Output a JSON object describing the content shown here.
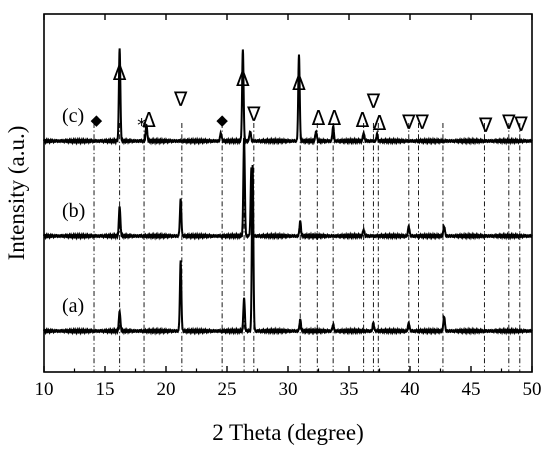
{
  "chart_data": {
    "type": "line",
    "xlabel": "2 Theta (degree)",
    "ylabel": "Intensity (a.u.)",
    "xlim": [
      10,
      50
    ],
    "x_ticks": [
      10,
      15,
      20,
      25,
      30,
      35,
      40,
      45,
      50
    ],
    "grid": false,
    "y_tick_labels": "none",
    "series": [
      {
        "name": "(a)",
        "peaks": [
          {
            "x": 16.2,
            "h": 0.12
          },
          {
            "x": 21.2,
            "h": 0.42
          },
          {
            "x": 26.4,
            "h": 0.2
          },
          {
            "x": 27.1,
            "h": 1.0
          },
          {
            "x": 31.0,
            "h": 0.07
          },
          {
            "x": 33.7,
            "h": 0.04
          },
          {
            "x": 37.0,
            "h": 0.05
          },
          {
            "x": 39.9,
            "h": 0.05
          },
          {
            "x": 42.8,
            "h": 0.09
          }
        ]
      },
      {
        "name": "(b)",
        "peaks": [
          {
            "x": 16.2,
            "h": 0.18
          },
          {
            "x": 21.2,
            "h": 0.22
          },
          {
            "x": 26.4,
            "h": 0.59
          },
          {
            "x": 27.0,
            "h": 0.41
          },
          {
            "x": 31.0,
            "h": 0.09
          },
          {
            "x": 36.2,
            "h": 0.04
          },
          {
            "x": 39.9,
            "h": 0.06
          },
          {
            "x": 42.8,
            "h": 0.06
          }
        ]
      },
      {
        "name": "(c)",
        "peaks": [
          {
            "x": 16.2,
            "h": 0.56
          },
          {
            "x": 18.4,
            "h": 0.1
          },
          {
            "x": 24.5,
            "h": 0.05
          },
          {
            "x": 26.3,
            "h": 0.55
          },
          {
            "x": 26.9,
            "h": 0.06
          },
          {
            "x": 30.9,
            "h": 0.52
          },
          {
            "x": 32.3,
            "h": 0.06
          },
          {
            "x": 33.7,
            "h": 0.09
          },
          {
            "x": 36.2,
            "h": 0.05
          },
          {
            "x": 37.3,
            "h": 0.04
          }
        ]
      }
    ],
    "reference_lines_x": [
      14.1,
      16.2,
      18.2,
      21.3,
      24.6,
      26.4,
      27.2,
      31.0,
      32.4,
      33.7,
      36.2,
      37.0,
      37.4,
      39.9,
      40.7,
      42.7,
      46.1,
      48.1,
      49.0
    ],
    "phase_markers": [
      {
        "symbol": "◆",
        "x": 14.3
      },
      {
        "symbol": "Δ",
        "x": 16.2
      },
      {
        "symbol": "*",
        "x": 18.0
      },
      {
        "symbol": "Δ",
        "x": 18.6
      },
      {
        "symbol": "∇",
        "x": 21.2
      },
      {
        "symbol": "◆",
        "x": 24.6
      },
      {
        "symbol": "Δ",
        "x": 26.3
      },
      {
        "symbol": "∇",
        "x": 27.2
      },
      {
        "symbol": "Δ",
        "x": 30.9
      },
      {
        "symbol": "Δ",
        "x": 32.5
      },
      {
        "symbol": "Δ",
        "x": 33.8
      },
      {
        "symbol": "Δ",
        "x": 36.1
      },
      {
        "symbol": "∇",
        "x": 37.0
      },
      {
        "symbol": "Δ",
        "x": 37.5
      },
      {
        "symbol": "∇",
        "x": 39.9
      },
      {
        "symbol": "∇",
        "x": 41.0
      },
      {
        "symbol": "∇",
        "x": 46.2
      },
      {
        "symbol": "∇",
        "x": 48.1
      },
      {
        "symbol": "∇",
        "x": 49.1
      }
    ]
  }
}
